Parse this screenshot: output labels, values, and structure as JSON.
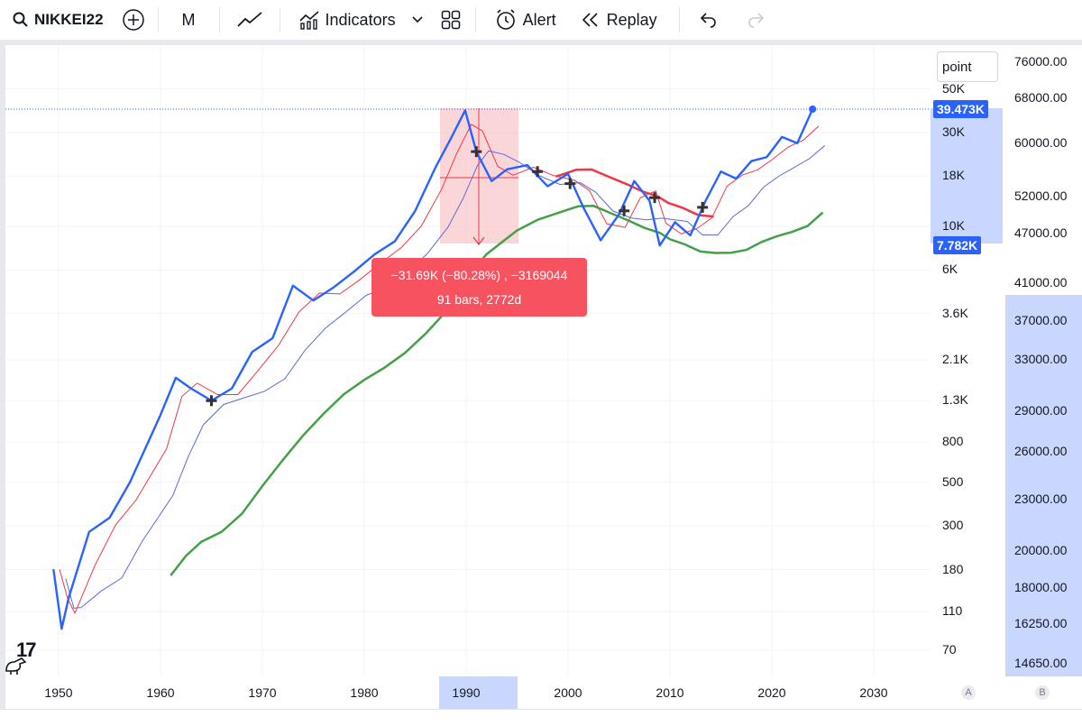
{
  "toolbar": {
    "symbol": "NIKKEI22",
    "interval": "M",
    "indicators_label": "Indicators",
    "alert_label": "Alert",
    "replay_label": "Replay"
  },
  "scale_mode": "point",
  "log_axis_labels": [
    "50K",
    "30K",
    "18K",
    "10K",
    "6K",
    "3.6K",
    "2.1K",
    "1.3K",
    "800",
    "500",
    "300",
    "180",
    "110",
    "70"
  ],
  "price_badge": "39.473K",
  "low_badge": "7.782K",
  "right_axis_labels": [
    "76000.00",
    "68000.00",
    "60000.00",
    "52000.00",
    "47000.00",
    "41000.00",
    "37000.00",
    "33000.00",
    "29000.00",
    "26000.00",
    "23000.00",
    "20000.00",
    "18000.00",
    "16250.00",
    "14650.00"
  ],
  "x_axis_labels": [
    "1950",
    "1960",
    "1970",
    "1980",
    "1990",
    "2000",
    "2010",
    "2020",
    "2030"
  ],
  "axis_buttons": [
    "A",
    "B"
  ],
  "measure_tooltip": {
    "line1": "−31.69K (−80.28%) , −3169044",
    "line2": "91 bars, 2772d"
  },
  "colors": {
    "price_line": "#2962ff",
    "ema_red": "#f23645",
    "sma_green": "#43a047",
    "ma_blue_thin": "#5b6bd8",
    "measure_fill": "#f8c8cc",
    "badge_blue": "#2962ff",
    "tooltip_red": "#f7525f"
  },
  "chart_data": {
    "type": "line",
    "scale": "log",
    "x": [
      1949.5,
      1950.3,
      1951,
      1953,
      1955,
      1957,
      1960,
      1961.5,
      1963,
      1965,
      1967,
      1969,
      1971,
      1973,
      1975,
      1977,
      1979,
      1981,
      1983,
      1985,
      1987,
      1988.5,
      1989.9,
      1991,
      1992.5,
      1994,
      1996,
      1998,
      2000,
      2001.5,
      2003.2,
      2005,
      2006.5,
      2008,
      2009,
      2010.5,
      2012,
      2013.5,
      2015,
      2016.5,
      2018,
      2019.5,
      2021,
      2022.5,
      2024
    ],
    "y": [
      180,
      90,
      130,
      280,
      330,
      500,
      1100,
      1700,
      1500,
      1300,
      1500,
      2300,
      2700,
      5000,
      4200,
      4900,
      5900,
      7200,
      8400,
      12000,
      20000,
      28000,
      38900,
      24000,
      17000,
      19500,
      20500,
      16000,
      18500,
      12500,
      8500,
      11500,
      17000,
      13500,
      8000,
      10500,
      9000,
      13500,
      19000,
      17500,
      21500,
      22500,
      28500,
      26500,
      39473
    ],
    "series_names": [
      "NIKKEI22"
    ]
  }
}
